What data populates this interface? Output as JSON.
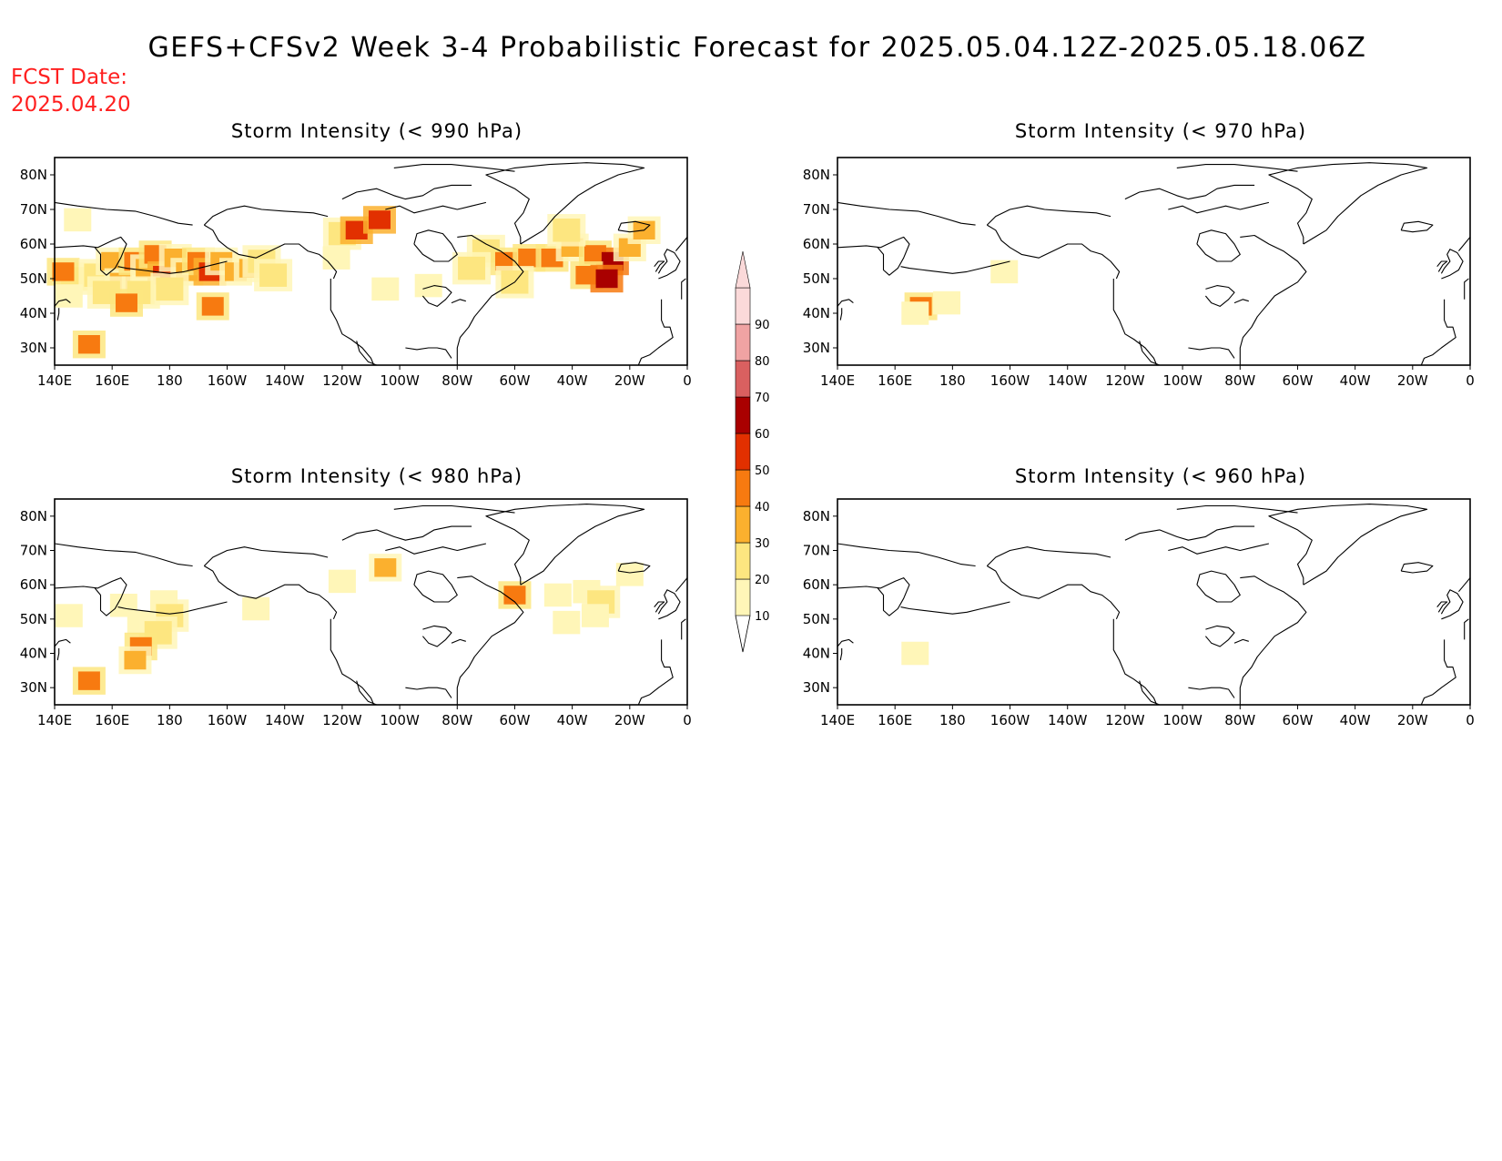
{
  "title": "GEFS+CFSv2 Week 3-4 Probabilistic Forecast for 2025.05.04.12Z-2025.05.18.06Z",
  "fcst_label": "FCST Date:",
  "fcst_date": "2025.04.20",
  "colors": {
    "title": "#000000",
    "fcst": "#ff2020",
    "levels": [
      "#fff6b8",
      "#fde680",
      "#fbb02e",
      "#f77a10",
      "#e23000",
      "#a90000",
      "#d96060",
      "#f0a3a3",
      "#fbd9d9"
    ]
  },
  "colorbar": {
    "ticks": [
      "10",
      "20",
      "30",
      "40",
      "50",
      "60",
      "70",
      "80",
      "90"
    ]
  },
  "lon_ticks": [
    "140E",
    "160E",
    "180",
    "160W",
    "140W",
    "120W",
    "100W",
    "80W",
    "60W",
    "40W",
    "20W",
    "0"
  ],
  "lat_ticks": [
    "80N",
    "70N",
    "60N",
    "50N",
    "40N",
    "30N"
  ],
  "panels": [
    {
      "id": "p990",
      "title": "Storm Intensity (< 990 hPa)",
      "patches": [
        {
          "lon": 147,
          "lat": 50,
          "level": 2
        },
        {
          "lon": 143,
          "lat": 52,
          "level": 4
        },
        {
          "lon": 145,
          "lat": 45,
          "level": 1
        },
        {
          "lon": 155,
          "lat": 51,
          "level": 2
        },
        {
          "lon": 160,
          "lat": 55,
          "level": 3
        },
        {
          "lon": 163,
          "lat": 49,
          "level": 3
        },
        {
          "lon": 168,
          "lat": 55,
          "level": 4
        },
        {
          "lon": 172,
          "lat": 53,
          "level": 3
        },
        {
          "lon": 175,
          "lat": 57,
          "level": 4
        },
        {
          "lon": 178,
          "lat": 51,
          "level": 5
        },
        {
          "lon": 182,
          "lat": 56,
          "level": 3
        },
        {
          "lon": 186,
          "lat": 52,
          "level": 3
        },
        {
          "lon": 190,
          "lat": 55,
          "level": 4
        },
        {
          "lon": 194,
          "lat": 52,
          "level": 5
        },
        {
          "lon": 198,
          "lat": 55,
          "level": 3
        },
        {
          "lon": 203,
          "lat": 52,
          "level": 3
        },
        {
          "lon": 208,
          "lat": 53,
          "level": 3
        },
        {
          "lon": 212,
          "lat": 55,
          "level": 2
        },
        {
          "lon": 216,
          "lat": 51,
          "level": 2
        },
        {
          "lon": 158,
          "lat": 46,
          "level": 2
        },
        {
          "lon": 170,
          "lat": 46,
          "level": 2
        },
        {
          "lon": 180,
          "lat": 47,
          "level": 2
        },
        {
          "lon": 165,
          "lat": 43,
          "level": 4
        },
        {
          "lon": 195,
          "lat": 42,
          "level": 4
        },
        {
          "lon": 152,
          "lat": 31,
          "level": 4
        },
        {
          "lon": 148,
          "lat": 67,
          "level": 1
        },
        {
          "lon": 240,
          "lat": 63,
          "level": 2
        },
        {
          "lon": 245,
          "lat": 64,
          "level": 5
        },
        {
          "lon": 253,
          "lat": 67,
          "level": 5
        },
        {
          "lon": 238,
          "lat": 56,
          "level": 1
        },
        {
          "lon": 270,
          "lat": 48,
          "level": 1
        },
        {
          "lon": 255,
          "lat": 47,
          "level": 1
        },
        {
          "lon": 290,
          "lat": 58,
          "level": 2
        },
        {
          "lon": 297,
          "lat": 55,
          "level": 4
        },
        {
          "lon": 305,
          "lat": 56,
          "level": 4
        },
        {
          "lon": 313,
          "lat": 56,
          "level": 4
        },
        {
          "lon": 320,
          "lat": 59,
          "level": 3
        },
        {
          "lon": 328,
          "lat": 57,
          "level": 4
        },
        {
          "lon": 334,
          "lat": 55,
          "level": 6
        },
        {
          "lon": 340,
          "lat": 59,
          "level": 3
        },
        {
          "lon": 345,
          "lat": 64,
          "level": 3
        },
        {
          "lon": 300,
          "lat": 49,
          "level": 2
        },
        {
          "lon": 325,
          "lat": 51,
          "level": 4
        },
        {
          "lon": 332,
          "lat": 50,
          "level": 6
        },
        {
          "lon": 285,
          "lat": 53,
          "level": 2
        },
        {
          "lon": 318,
          "lat": 64,
          "level": 2
        }
      ]
    },
    {
      "id": "p970",
      "title": "Storm Intensity (< 970 hPa)",
      "patches": [
        {
          "lon": 169,
          "lat": 42,
          "level": 4
        },
        {
          "lon": 167,
          "lat": 40,
          "level": 1
        },
        {
          "lon": 178,
          "lat": 43,
          "level": 1
        },
        {
          "lon": 198,
          "lat": 52,
          "level": 1
        }
      ]
    },
    {
      "id": "p980",
      "title": "Storm Intensity (< 980 hPa)",
      "patches": [
        {
          "lon": 145,
          "lat": 51,
          "level": 1
        },
        {
          "lon": 164,
          "lat": 54,
          "level": 1
        },
        {
          "lon": 170,
          "lat": 49,
          "level": 1
        },
        {
          "lon": 178,
          "lat": 55,
          "level": 1
        },
        {
          "lon": 180,
          "lat": 51,
          "level": 2
        },
        {
          "lon": 176,
          "lat": 46,
          "level": 2
        },
        {
          "lon": 170,
          "lat": 42,
          "level": 4
        },
        {
          "lon": 168,
          "lat": 38,
          "level": 3
        },
        {
          "lon": 152,
          "lat": 32,
          "level": 4
        },
        {
          "lon": 210,
          "lat": 53,
          "level": 1
        },
        {
          "lon": 255,
          "lat": 65,
          "level": 3
        },
        {
          "lon": 240,
          "lat": 61,
          "level": 1
        },
        {
          "lon": 300,
          "lat": 57,
          "level": 4
        },
        {
          "lon": 315,
          "lat": 57,
          "level": 1
        },
        {
          "lon": 325,
          "lat": 58,
          "level": 1
        },
        {
          "lon": 330,
          "lat": 55,
          "level": 2
        },
        {
          "lon": 340,
          "lat": 63,
          "level": 1
        },
        {
          "lon": 318,
          "lat": 49,
          "level": 1
        },
        {
          "lon": 328,
          "lat": 51,
          "level": 1
        }
      ]
    },
    {
      "id": "p960",
      "title": "Storm Intensity (< 960 hPa)",
      "patches": [
        {
          "lon": 167,
          "lat": 40,
          "level": 1
        }
      ]
    }
  ]
}
